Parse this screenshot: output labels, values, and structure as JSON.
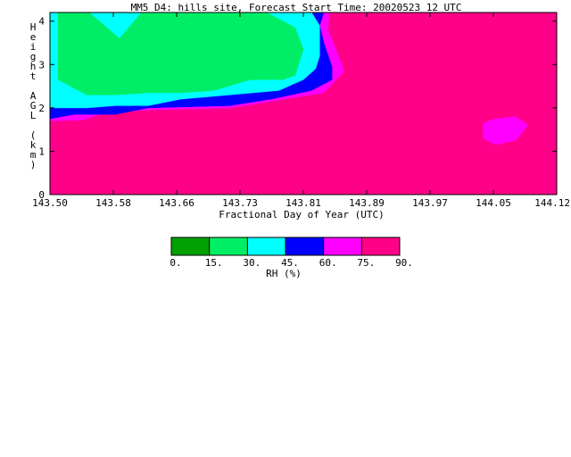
{
  "chart_data": {
    "type": "heatmap",
    "title": "MM5_D4: hills site,  Forecast Start Time: 20020523 12 UTC",
    "xlabel": "Fractional Day of Year (UTC)",
    "ylabel": "Height AGL (km)",
    "x_tick_labels": [
      "143.50",
      "143.58",
      "143.66",
      "143.73",
      "143.81",
      "143.89",
      "143.97",
      "144.05",
      "144.12"
    ],
    "y_tick_labels": [
      "0",
      "1",
      "2",
      "3",
      "4"
    ],
    "xlim": [
      143.5,
      144.12
    ],
    "ylim": [
      0,
      4.2
    ],
    "colorbar": {
      "label": "RH (%)",
      "tick_labels": [
        "0.",
        "15.",
        "30.",
        "45.",
        "60.",
        "75.",
        "90."
      ],
      "bins": [
        {
          "range": [
            0,
            15
          ],
          "color": "#00a000"
        },
        {
          "range": [
            15,
            30
          ],
          "color": "#00ee66"
        },
        {
          "range": [
            30,
            45
          ],
          "color": "#00ffff"
        },
        {
          "range": [
            45,
            60
          ],
          "color": "#0000ff"
        },
        {
          "range": [
            60,
            75
          ],
          "color": "#ff00ff"
        },
        {
          "range": [
            75,
            90
          ],
          "color": "#ff0088"
        }
      ]
    },
    "fields": [
      {
        "rh_min": 75,
        "color": "#ff0088",
        "polygon": [
          [
            143.5,
            0
          ],
          [
            144.12,
            0
          ],
          [
            144.12,
            4.2
          ],
          [
            143.5,
            4.2
          ]
        ]
      },
      {
        "rh_min": 60,
        "color": "#ff00ff",
        "polygon": [
          [
            144.045,
            1.75
          ],
          [
            144.07,
            1.8
          ],
          [
            144.085,
            1.6
          ],
          [
            144.07,
            1.25
          ],
          [
            144.045,
            1.15
          ],
          [
            144.03,
            1.3
          ],
          [
            144.03,
            1.65
          ]
        ]
      },
      {
        "rh_min": 60,
        "color": "#ff00ff",
        "polygon": [
          [
            143.5,
            4.2
          ],
          [
            143.842,
            4.2
          ],
          [
            143.84,
            3.8
          ],
          [
            143.853,
            3.2
          ],
          [
            143.86,
            2.85
          ],
          [
            143.835,
            2.35
          ],
          [
            143.77,
            2.15
          ],
          [
            143.72,
            2.0
          ],
          [
            143.62,
            1.95
          ],
          [
            143.57,
            1.9
          ],
          [
            143.54,
            1.72
          ],
          [
            143.5,
            1.7
          ]
        ]
      },
      {
        "rh_min": 45,
        "color": "#0000ff",
        "polygon": [
          [
            143.5,
            4.2
          ],
          [
            143.835,
            4.2
          ],
          [
            143.83,
            3.9
          ],
          [
            143.835,
            3.5
          ],
          [
            143.845,
            2.95
          ],
          [
            143.845,
            2.65
          ],
          [
            143.82,
            2.4
          ],
          [
            143.77,
            2.2
          ],
          [
            143.72,
            2.05
          ],
          [
            143.62,
            2.0
          ],
          [
            143.58,
            1.85
          ],
          [
            143.53,
            1.85
          ],
          [
            143.5,
            1.75
          ]
        ]
      },
      {
        "rh_min": 30,
        "color": "#00ffff",
        "polygon": [
          [
            143.5,
            4.2
          ],
          [
            143.82,
            4.2
          ],
          [
            143.83,
            3.9
          ],
          [
            143.83,
            3.2
          ],
          [
            143.825,
            2.9
          ],
          [
            143.81,
            2.65
          ],
          [
            143.78,
            2.4
          ],
          [
            143.72,
            2.3
          ],
          [
            143.66,
            2.2
          ],
          [
            143.62,
            2.05
          ],
          [
            143.58,
            2.05
          ],
          [
            143.545,
            2.0
          ],
          [
            143.5,
            2.0
          ]
        ]
      },
      {
        "rh_min": 15,
        "color": "#00ee66",
        "polygon": [
          [
            143.51,
            4.2
          ],
          [
            143.548,
            4.2
          ],
          [
            143.585,
            3.6
          ],
          [
            143.612,
            4.2
          ],
          [
            143.765,
            4.2
          ],
          [
            143.8,
            3.85
          ],
          [
            143.81,
            3.35
          ],
          [
            143.8,
            2.75
          ],
          [
            143.785,
            2.65
          ],
          [
            143.745,
            2.65
          ],
          [
            143.7,
            2.4
          ],
          [
            143.66,
            2.35
          ],
          [
            143.62,
            2.35
          ],
          [
            143.58,
            2.3
          ],
          [
            143.545,
            2.3
          ],
          [
            143.51,
            2.65
          ],
          [
            143.51,
            3.1
          ]
        ]
      }
    ]
  }
}
